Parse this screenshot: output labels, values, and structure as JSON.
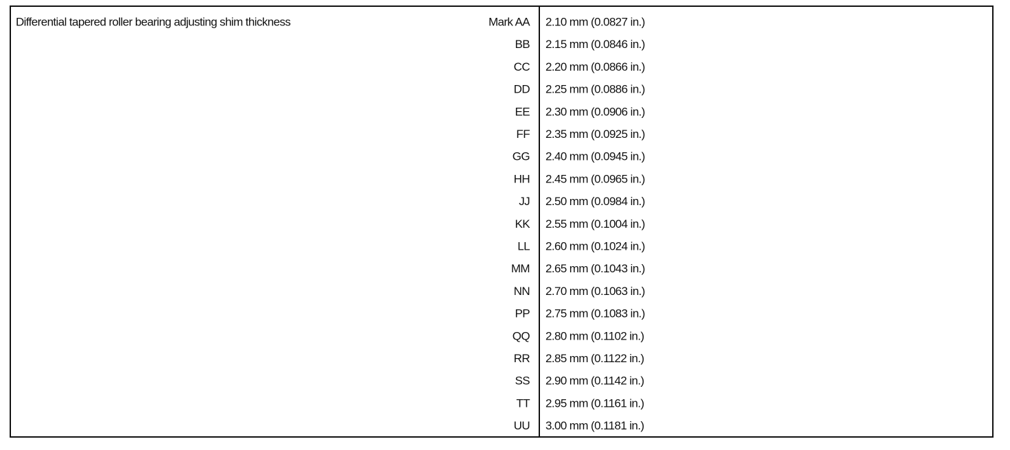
{
  "table": {
    "title": "Differential tapered roller bearing adjusting shim thickness",
    "rows": [
      [
        "Mark AA",
        "2.10 mm (0.0827 in.)"
      ],
      [
        "BB",
        "2.15 mm (0.0846 in.)"
      ],
      [
        "CC",
        "2.20 mm (0.0866 in.)"
      ],
      [
        "DD",
        "2.25 mm (0.0886 in.)"
      ],
      [
        "EE",
        "2.30 mm (0.0906 in.)"
      ],
      [
        "FF",
        "2.35 mm (0.0925 in.)"
      ],
      [
        "GG",
        "2.40 mm (0.0945 in.)"
      ],
      [
        "HH",
        "2.45 mm (0.0965 in.)"
      ],
      [
        "JJ",
        "2.50 mm (0.0984 in.)"
      ],
      [
        "KK",
        "2.55 mm (0.1004 in.)"
      ],
      [
        "LL",
        "2.60 mm (0.1024 in.)"
      ],
      [
        "MM",
        "2.65 mm (0.1043 in.)"
      ],
      [
        "NN",
        "2.70 mm (0.1063 in.)"
      ],
      [
        "PP",
        "2.75 mm (0.1083 in.)"
      ],
      [
        "QQ",
        "2.80 mm (0.1102 in.)"
      ],
      [
        "RR",
        "2.85 mm (0.1122 in.)"
      ],
      [
        "SS",
        "2.90 mm (0.1142 in.)"
      ],
      [
        "TT",
        "2.95 mm (0.1161 in.)"
      ],
      [
        "UU",
        "3.00 mm (0.1181 in.)"
      ]
    ]
  }
}
